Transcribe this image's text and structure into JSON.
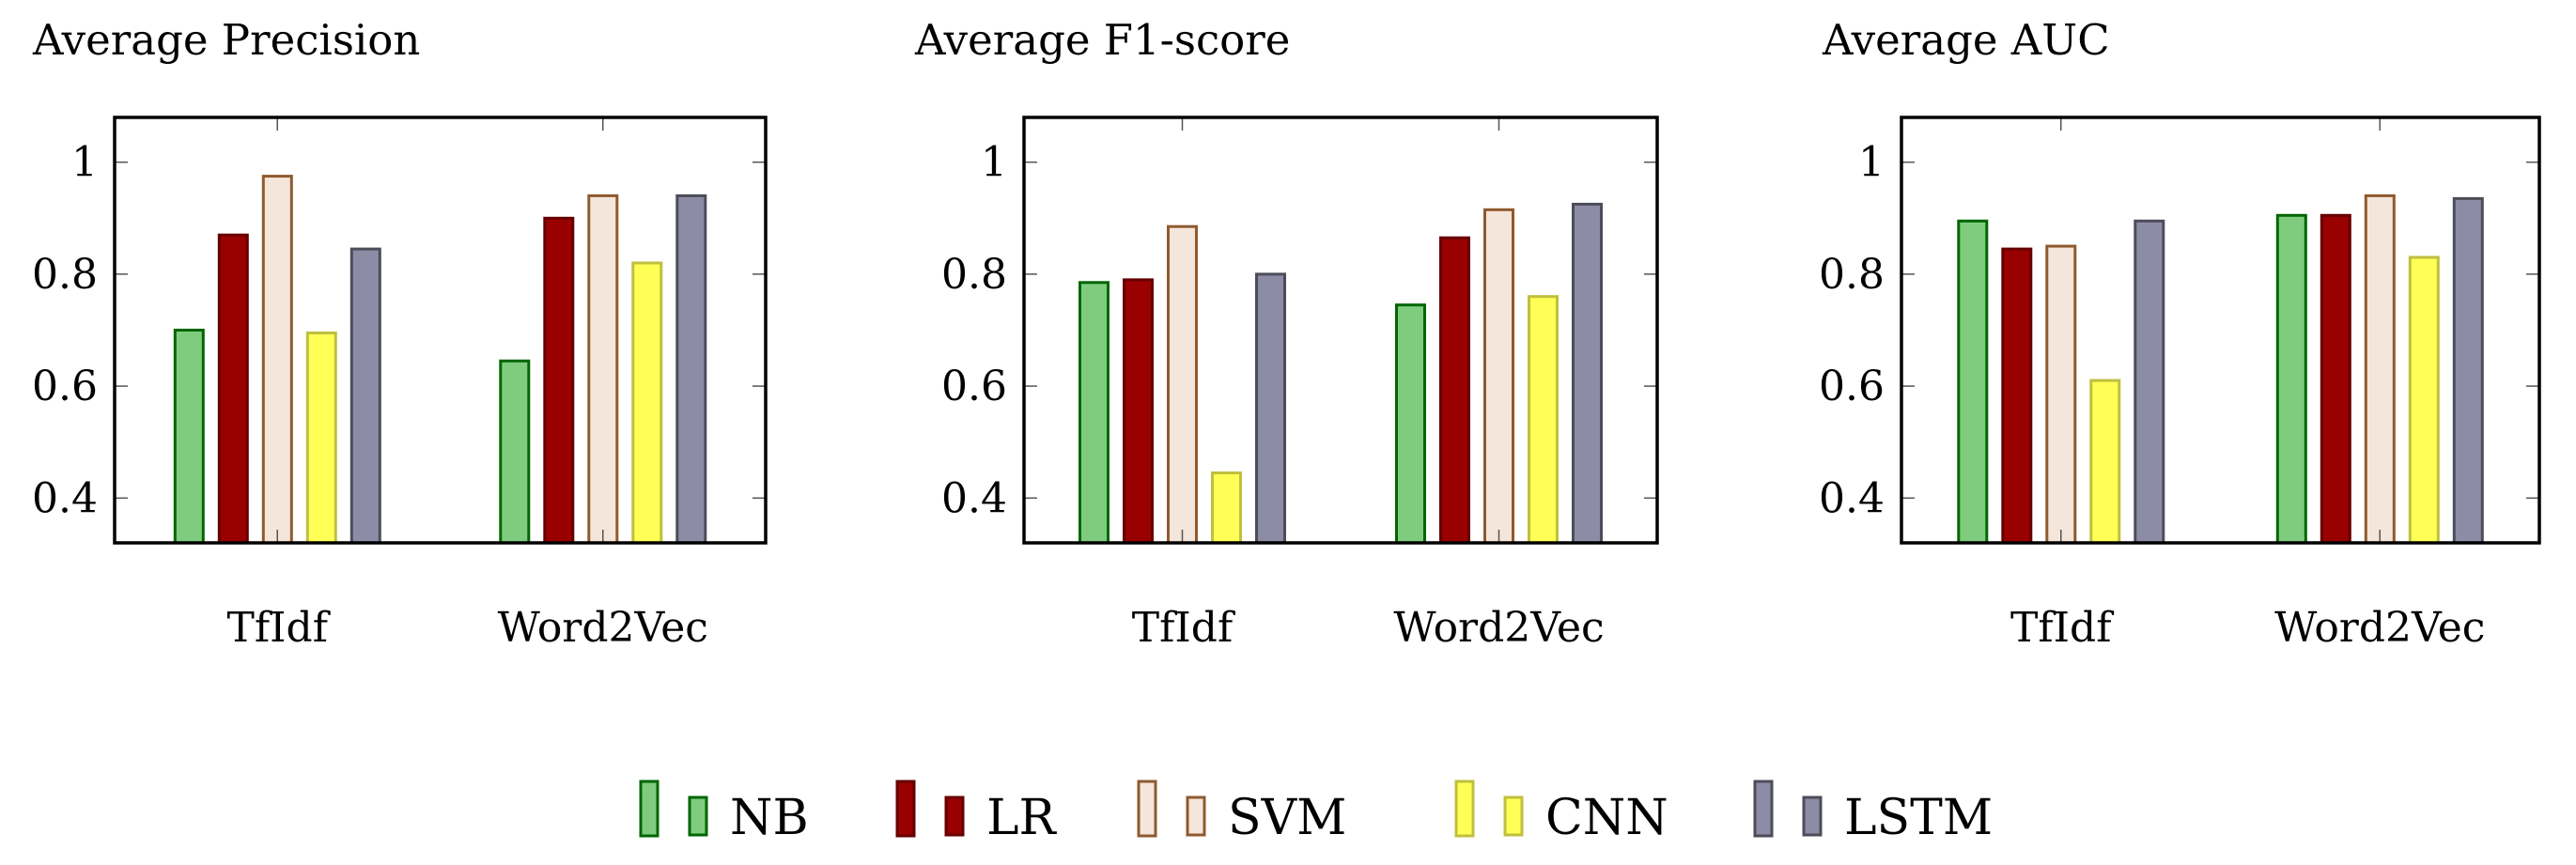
{
  "chart_data": [
    {
      "type": "bar",
      "title": "Average Precision",
      "xlabel": "",
      "ylabel": "",
      "categories": [
        "TfIdf",
        "Word2Vec"
      ],
      "ylim": [
        0.32,
        1.08
      ],
      "yticks": [
        0.4,
        0.6,
        0.8,
        1
      ],
      "ytick_labels": [
        "0.4",
        "0.6",
        "0.8",
        "1"
      ],
      "series": [
        {
          "name": "NB",
          "values": [
            0.7,
            0.645
          ]
        },
        {
          "name": "LR",
          "values": [
            0.87,
            0.9
          ]
        },
        {
          "name": "SVM",
          "values": [
            0.975,
            0.94
          ]
        },
        {
          "name": "CNN",
          "values": [
            0.695,
            0.82
          ]
        },
        {
          "name": "LSTM",
          "values": [
            0.845,
            0.94
          ]
        }
      ]
    },
    {
      "type": "bar",
      "title": "Average F1-score",
      "xlabel": "",
      "ylabel": "",
      "categories": [
        "TfIdf",
        "Word2Vec"
      ],
      "ylim": [
        0.32,
        1.08
      ],
      "yticks": [
        0.4,
        0.6,
        0.8,
        1
      ],
      "ytick_labels": [
        "0.4",
        "0.6",
        "0.8",
        "1"
      ],
      "series": [
        {
          "name": "NB",
          "values": [
            0.785,
            0.745
          ]
        },
        {
          "name": "LR",
          "values": [
            0.79,
            0.865
          ]
        },
        {
          "name": "SVM",
          "values": [
            0.885,
            0.915
          ]
        },
        {
          "name": "CNN",
          "values": [
            0.445,
            0.76
          ]
        },
        {
          "name": "LSTM",
          "values": [
            0.8,
            0.925
          ]
        }
      ]
    },
    {
      "type": "bar",
      "title": "Average AUC",
      "xlabel": "",
      "ylabel": "",
      "categories": [
        "TfIdf",
        "Word2Vec"
      ],
      "ylim": [
        0.32,
        1.08
      ],
      "yticks": [
        0.4,
        0.6,
        0.8,
        1
      ],
      "ytick_labels": [
        "0.4",
        "0.6",
        "0.8",
        "1"
      ],
      "series": [
        {
          "name": "NB",
          "values": [
            0.895,
            0.905
          ]
        },
        {
          "name": "LR",
          "values": [
            0.845,
            0.905
          ]
        },
        {
          "name": "SVM",
          "values": [
            0.85,
            0.94
          ]
        },
        {
          "name": "CNN",
          "values": [
            0.61,
            0.83
          ]
        },
        {
          "name": "LSTM",
          "values": [
            0.895,
            0.935
          ]
        }
      ]
    }
  ],
  "legend": {
    "placement": "bottom",
    "items": [
      {
        "name": "NB",
        "fill": "#7fcc7f",
        "stroke": "#006600"
      },
      {
        "name": "LR",
        "fill": "#990000",
        "stroke": "#660000"
      },
      {
        "name": "SVM",
        "fill": "#f5e6dc",
        "stroke": "#8f5a2e"
      },
      {
        "name": "CNN",
        "fill": "#ffff55",
        "stroke": "#bfbf3f"
      },
      {
        "name": "LSTM",
        "fill": "#8c8ca6",
        "stroke": "#4d4d59"
      }
    ]
  }
}
